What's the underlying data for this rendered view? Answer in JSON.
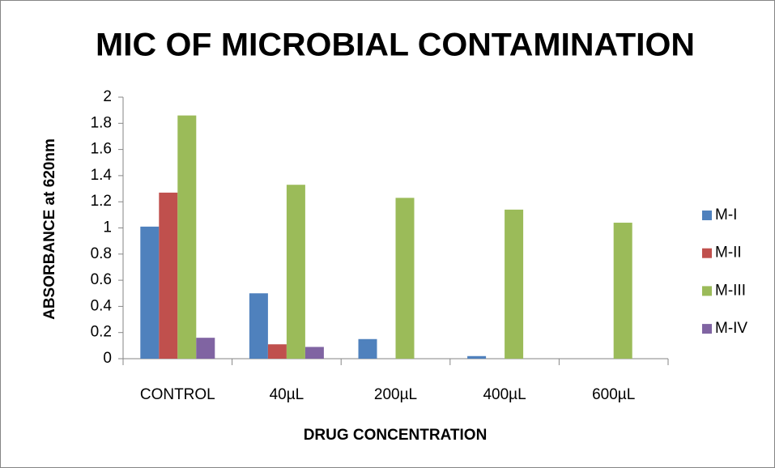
{
  "chart_data": {
    "type": "bar",
    "title": "MIC OF MICROBIAL CONTAMINATION",
    "x_label": "DRUG CONCENTRATION",
    "y_label": "ABSORBANCE at 620nm",
    "categories": [
      "CONTROL",
      "40µL",
      "200µL",
      "400µL",
      "600µL"
    ],
    "series": [
      {
        "name": "M-I",
        "color": "#4f81bd",
        "values": [
          1.01,
          0.5,
          0.15,
          0.02,
          0
        ]
      },
      {
        "name": "M-II",
        "color": "#c0504d",
        "values": [
          1.27,
          0.11,
          0,
          0,
          0
        ]
      },
      {
        "name": "M-III",
        "color": "#9bbb59",
        "values": [
          1.86,
          1.33,
          1.23,
          1.14,
          1.04
        ]
      },
      {
        "name": "M-IV",
        "color": "#8064a2",
        "values": [
          0.16,
          0.09,
          0,
          0,
          0
        ]
      }
    ],
    "ylim": [
      0,
      2
    ],
    "yticks": [
      0,
      0.2,
      0.4,
      0.6,
      0.8,
      1,
      1.2,
      1.4,
      1.6,
      1.8,
      2
    ],
    "grid": false,
    "legend": "right"
  }
}
